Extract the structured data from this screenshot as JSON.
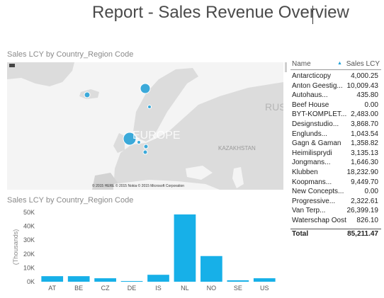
{
  "header": {
    "title": "Report - Sales Revenue Overview"
  },
  "map_tile": {
    "title": "Sales LCY by Country_Region Code",
    "labels": {
      "europe": "EUROPE",
      "kazakhstan": "KAZAKHSTAN",
      "russia": "RUS"
    },
    "attribution": "© 2015 HERE   © 2015 Nokia   © 2015 Microsoft Corporation",
    "bubble_color": "#3ba9d9",
    "water_color": "#f4f4f4",
    "land_color": "#dcdcdc",
    "bubbles": [
      {
        "code": "NL",
        "value": 48000
      },
      {
        "code": "NO",
        "value": 18000
      },
      {
        "code": "IS",
        "value": 4500
      },
      {
        "code": "DE",
        "value": 1000
      },
      {
        "code": "CZ",
        "value": 2000
      },
      {
        "code": "AT",
        "value": 3500
      },
      {
        "code": "SE",
        "value": 1000
      }
    ]
  },
  "table": {
    "columns": {
      "name": "Name",
      "sales": "Sales LCY"
    },
    "sort_icon": "sort-ascending-icon",
    "rows": [
      {
        "name": "Antarcticopy",
        "value": "4,000.25"
      },
      {
        "name": "Anton Geestig...",
        "value": "10,009.43"
      },
      {
        "name": "Autohaus...",
        "value": "435.80"
      },
      {
        "name": "Beef House",
        "value": "0.00"
      },
      {
        "name": "BYT-KOMPLET...",
        "value": "2,483.00"
      },
      {
        "name": "Designstudio...",
        "value": "3,868.70"
      },
      {
        "name": "Englunds...",
        "value": "1,043.54"
      },
      {
        "name": "Gagn & Gaman",
        "value": "1,358.82"
      },
      {
        "name": "Heimilisprydi",
        "value": "3,135.13"
      },
      {
        "name": "Jongmans...",
        "value": "1,646.30"
      },
      {
        "name": "Klubben",
        "value": "18,232.90"
      },
      {
        "name": "Koopmans...",
        "value": "9,449.70"
      },
      {
        "name": "New Concepts...",
        "value": "0.00"
      },
      {
        "name": "Progressive...",
        "value": "2,322.61"
      },
      {
        "name": "Van Terp...",
        "value": "26,399.19"
      },
      {
        "name": "Waterschap Oost",
        "value": "826.10"
      }
    ],
    "total": {
      "label": "Total",
      "value": "85,211.47"
    }
  },
  "bar_tile": {
    "title": "Sales LCY by Country_Region Code"
  },
  "chart_data": {
    "type": "bar",
    "categories": [
      "AT",
      "BE",
      "CZ",
      "DE",
      "IS",
      "NL",
      "NO",
      "SE",
      "US"
    ],
    "values": [
      4000,
      4000,
      2500,
      500,
      5000,
      48500,
      18500,
      1000,
      2500
    ],
    "ylabel": "(Thousands)",
    "yticks": [
      "0K",
      "10K",
      "20K",
      "30K",
      "40K",
      "50K"
    ],
    "ylim": [
      0,
      50000
    ],
    "bar_color": "#17b0e8",
    "grid": false
  }
}
